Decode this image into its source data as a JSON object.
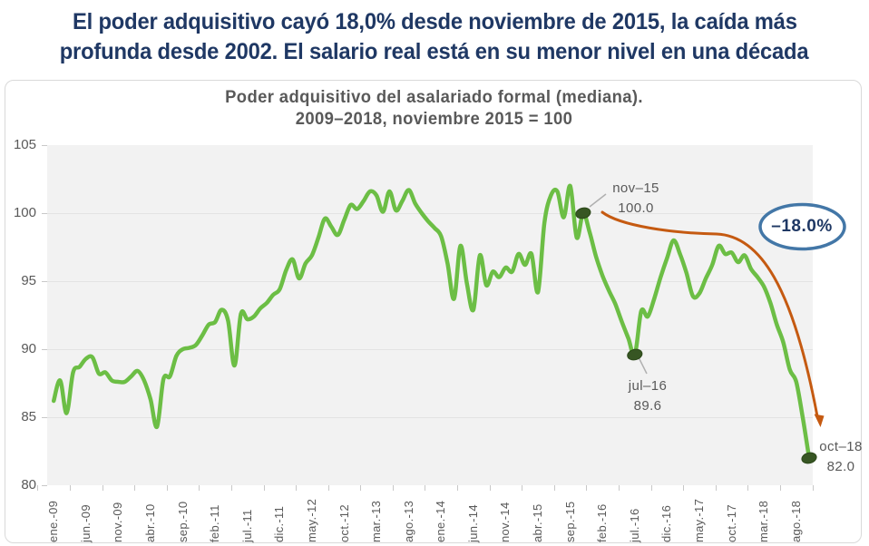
{
  "headline": {
    "line1": "El poder adquisitivo cayó 18,0% desde noviembre de 2015, la caída más",
    "line2": "profunda desde 2002. El salario real está en su menor nivel en una década"
  },
  "chart": {
    "title_line1": "Poder adquisitivo del asalariado formal (mediana).",
    "title_line2": "2009–2018, noviembre 2015 = 100",
    "badge_label": "–18.0%",
    "annotations": {
      "nov15": {
        "label": "nov–15",
        "value": "100.0"
      },
      "jul16": {
        "label": "jul–16",
        "value": "89.6"
      },
      "oct18": {
        "label": "oct–18",
        "value": "82.0"
      }
    }
  },
  "chart_data": {
    "type": "line",
    "title": "Poder adquisitivo del asalariado formal (mediana). 2009–2018, noviembre 2015 = 100",
    "x_unit": "month",
    "x_range": [
      "ene-09",
      "oct-18"
    ],
    "x_tick_labels": [
      "ene.-09",
      "jun.-09",
      "nov.-09",
      "abr.-10",
      "sep.-10",
      "feb.-11",
      "jul.-11",
      "dic.-11",
      "may.-12",
      "oct.-12",
      "mar.-13",
      "ago.-13",
      "ene.-14",
      "jun.-14",
      "nov.-14",
      "abr.-15",
      "sep.-15",
      "feb.-16",
      "jul.-16",
      "dic.-16",
      "may.-17",
      "oct.-17",
      "mar.-18",
      "ago.-18"
    ],
    "y_ticks": [
      105,
      100,
      95,
      90,
      85,
      80
    ],
    "ylim": [
      80,
      105
    ],
    "grid": "horizontal",
    "values": [
      86.2,
      87.7,
      85.3,
      88.3,
      88.7,
      89.3,
      89.4,
      88.2,
      88.3,
      87.7,
      87.6,
      87.6,
      88.0,
      88.4,
      87.7,
      86.3,
      84.3,
      87.8,
      88.0,
      89.5,
      90.0,
      90.1,
      90.3,
      91.0,
      91.8,
      92.0,
      92.9,
      92.1,
      88.8,
      92.6,
      92.2,
      92.4,
      93.0,
      93.4,
      94.0,
      94.4,
      95.8,
      96.6,
      95.2,
      96.3,
      96.9,
      98.2,
      99.6,
      99.0,
      98.4,
      99.5,
      100.6,
      100.3,
      100.9,
      101.6,
      101.3,
      100.1,
      101.6,
      100.2,
      100.9,
      101.7,
      100.7,
      100.0,
      99.4,
      98.9,
      98.3,
      96.3,
      93.7,
      97.6,
      94.8,
      92.9,
      96.9,
      94.7,
      95.7,
      95.3,
      96.0,
      95.7,
      97.0,
      96.2,
      97.0,
      94.2,
      99.3,
      101.3,
      101.6,
      99.7,
      102.0,
      98.2,
      100.0,
      98.6,
      96.8,
      95.4,
      94.3,
      93.3,
      92.0,
      90.8,
      89.6,
      92.8,
      92.4,
      93.7,
      95.3,
      96.7,
      98.0,
      97.0,
      95.6,
      93.9,
      94.1,
      95.2,
      96.2,
      97.6,
      97.0,
      97.1,
      96.4,
      96.9,
      95.9,
      95.3,
      94.6,
      93.4,
      91.8,
      90.5,
      88.5,
      87.6,
      85.0,
      82.0
    ],
    "callouts": [
      {
        "label": "nov–15",
        "month_index": 82,
        "value": 100.0
      },
      {
        "label": "jul–16",
        "month_index": 90,
        "value": 89.6
      },
      {
        "label": "oct–18",
        "month_index": 117,
        "value": 82.0
      }
    ],
    "line_color": "#6CBE45",
    "marker_color": "#375623",
    "marker_edge_color": "#2C481A",
    "arrow_color": "#C55A11",
    "badge_border_color": "#4377A7",
    "badge_text_color": "#1F3864"
  },
  "colors": {
    "headline": "#1F3864",
    "title_gray": "#595959",
    "plot_bg": "#F2F2F2",
    "gridline": "#E3E3E3",
    "card_border": "#D9D9D9"
  }
}
